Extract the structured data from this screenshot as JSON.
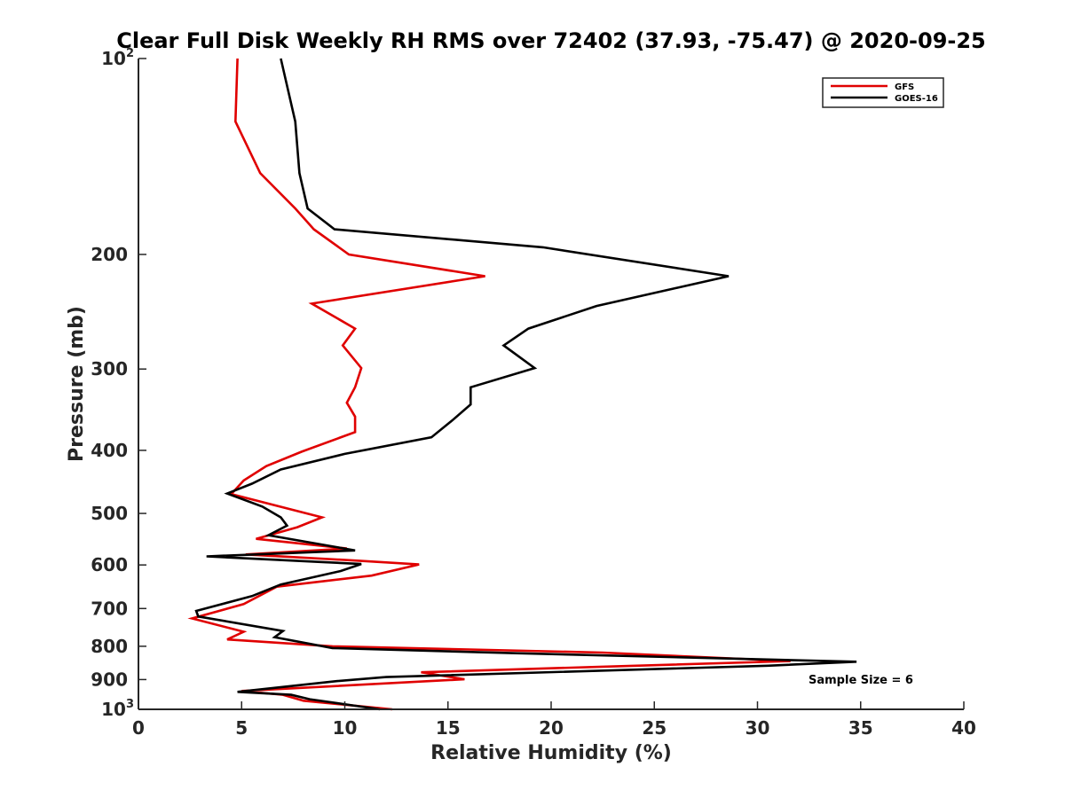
{
  "chart_data": {
    "type": "line",
    "title": "Clear Full Disk Weekly RH RMS over 72402 (37.93, -75.47) @ 2020-09-25",
    "xlabel": "Relative Humidity (%)",
    "ylabel": "Pressure (mb)",
    "xlim": [
      0,
      40
    ],
    "ylim": [
      100,
      1000
    ],
    "yscale": "log",
    "yreverse": true,
    "xticks": [
      "0",
      "5",
      "10",
      "15",
      "20",
      "25",
      "30",
      "35",
      "40"
    ],
    "yticks": [
      {
        "value": 100,
        "base": "10",
        "exp": "2"
      },
      {
        "value": 200,
        "label": "200"
      },
      {
        "value": 300,
        "label": "300"
      },
      {
        "value": 400,
        "label": "400"
      },
      {
        "value": 500,
        "label": "500"
      },
      {
        "value": 600,
        "label": "600"
      },
      {
        "value": 700,
        "label": "700"
      },
      {
        "value": 800,
        "label": "800"
      },
      {
        "value": 900,
        "label": "900"
      },
      {
        "value": 1000,
        "base": "10",
        "exp": "3"
      }
    ],
    "legend_position": "top-right",
    "annotation": "Sample Size = 6",
    "series": [
      {
        "name": "GFS",
        "color": "#e00000",
        "points": [
          [
            4.8,
            100
          ],
          [
            4.7,
            125
          ],
          [
            5.9,
            150
          ],
          [
            7.6,
            170
          ],
          [
            8.5,
            183
          ],
          [
            10.2,
            200
          ],
          [
            16.8,
            216
          ],
          [
            8.4,
            238
          ],
          [
            10.5,
            260
          ],
          [
            9.9,
            276
          ],
          [
            10.8,
            299
          ],
          [
            10.5,
            320
          ],
          [
            10.1,
            338
          ],
          [
            10.5,
            355
          ],
          [
            10.5,
            375
          ],
          [
            7.9,
            402
          ],
          [
            6.2,
            423
          ],
          [
            5.1,
            445
          ],
          [
            4.5,
            467
          ],
          [
            8.9,
            507
          ],
          [
            7.7,
            525
          ],
          [
            5.7,
            547
          ],
          [
            10.1,
            566
          ],
          [
            5.2,
            578
          ],
          [
            10.6,
            591
          ],
          [
            13.6,
            599
          ],
          [
            11.3,
            623
          ],
          [
            6.7,
            648
          ],
          [
            5.1,
            689
          ],
          [
            2.6,
            725
          ],
          [
            5.1,
            760
          ],
          [
            4.3,
            781
          ],
          [
            9.4,
            800
          ],
          [
            22.5,
            818
          ],
          [
            31.6,
            843
          ],
          [
            22.5,
            860
          ],
          [
            13.7,
            877
          ],
          [
            15.8,
            899
          ],
          [
            5.0,
            937
          ],
          [
            7.0,
            950
          ],
          [
            8.0,
            970
          ],
          [
            12.3,
            1000
          ]
        ]
      },
      {
        "name": "GOES-16",
        "color": "#000000",
        "points": [
          [
            6.9,
            100
          ],
          [
            7.6,
            125
          ],
          [
            7.8,
            150
          ],
          [
            8.2,
            170
          ],
          [
            9.5,
            183
          ],
          [
            19.6,
            195
          ],
          [
            28.6,
            216
          ],
          [
            22.2,
            240
          ],
          [
            18.9,
            260
          ],
          [
            17.7,
            276
          ],
          [
            19.2,
            299
          ],
          [
            16.1,
            320
          ],
          [
            16.1,
            340
          ],
          [
            15.2,
            360
          ],
          [
            14.2,
            382
          ],
          [
            10.0,
            405
          ],
          [
            6.9,
            428
          ],
          [
            5.5,
            450
          ],
          [
            4.3,
            466
          ],
          [
            6.0,
            488
          ],
          [
            6.9,
            507
          ],
          [
            7.2,
            522
          ],
          [
            6.3,
            540
          ],
          [
            10.5,
            570
          ],
          [
            3.3,
            582
          ],
          [
            10.8,
            598
          ],
          [
            9.8,
            613
          ],
          [
            6.9,
            643
          ],
          [
            5.5,
            670
          ],
          [
            2.8,
            706
          ],
          [
            2.9,
            720
          ],
          [
            7.0,
            758
          ],
          [
            6.6,
            775
          ],
          [
            9.4,
            805
          ],
          [
            18.3,
            820
          ],
          [
            34.8,
            845
          ],
          [
            30.5,
            857
          ],
          [
            12.0,
            892
          ],
          [
            9.6,
            905
          ],
          [
            4.8,
            940
          ],
          [
            7.4,
            950
          ],
          [
            8.3,
            965
          ],
          [
            11.7,
            1000
          ]
        ]
      }
    ]
  }
}
